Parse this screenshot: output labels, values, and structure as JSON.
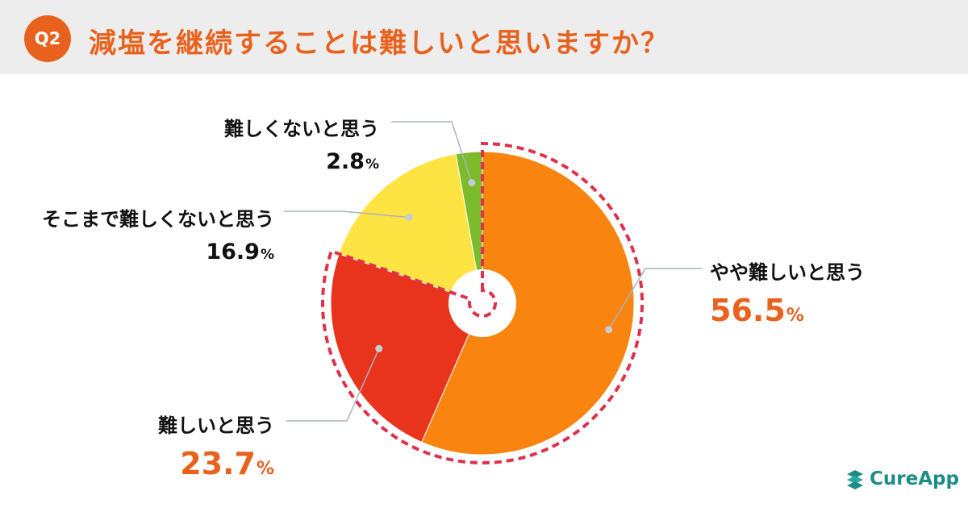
{
  "header": {
    "badge": "Q2",
    "title": "減塩を継続することは難しいと思いますか？"
  },
  "chart_data": {
    "type": "pie",
    "donut": true,
    "slices": [
      {
        "label": "やや難しいと思う",
        "value": 56.5,
        "color": "#f98510",
        "emphasized": true
      },
      {
        "label": "難しいと思う",
        "value": 23.7,
        "color": "#e8341c",
        "emphasized": true
      },
      {
        "label": "そこまで難しくないと思う",
        "value": 16.9,
        "color": "#fde442",
        "emphasized": false
      },
      {
        "label": "難しくないと思う",
        "value": 2.8,
        "color": "#7cbb2c",
        "emphasized": false
      }
    ],
    "highlight_outline_color": "#e0304a",
    "unit": "%"
  },
  "labels": {
    "slice0": {
      "name": "やや難しいと思う",
      "value": "56.5"
    },
    "slice1": {
      "name": "難しいと思う",
      "value": "23.7"
    },
    "slice2": {
      "name": "そこまで難しくないと思う",
      "value": "16.9"
    },
    "slice3": {
      "name": "難しくないと思う",
      "value": "2.8"
    },
    "unit": "%"
  },
  "brand": {
    "name": "CureApp",
    "color": "#1c8e86"
  }
}
